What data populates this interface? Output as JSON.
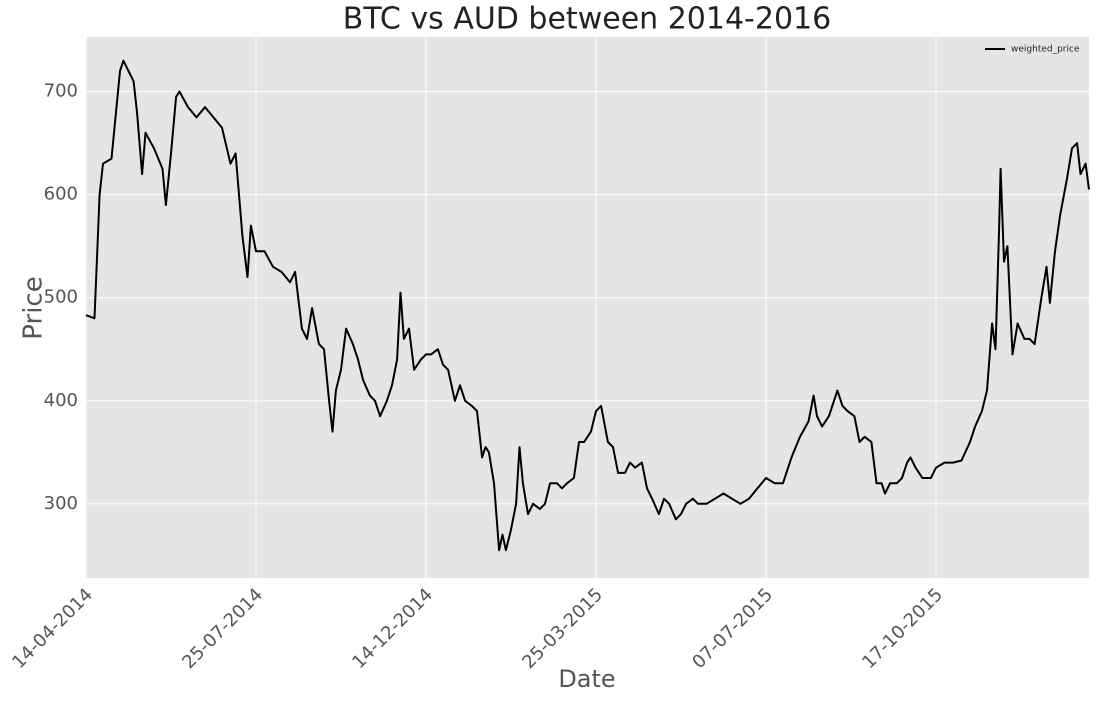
{
  "chart_data": {
    "type": "line",
    "title": "BTC vs AUD between 2014-2016",
    "x_label": "Date",
    "y_label": "Price",
    "grid": true,
    "legend": "upper right",
    "xlim": [
      0,
      590
    ],
    "ylim": [
      228,
      753
    ],
    "xticks": [
      {
        "value": 0,
        "label": "14-04-2014"
      },
      {
        "value": 100,
        "label": "25-07-2014"
      },
      {
        "value": 200,
        "label": "14-12-2014"
      },
      {
        "value": 300,
        "label": "25-03-2015"
      },
      {
        "value": 400,
        "label": "07-07-2015"
      },
      {
        "value": 500,
        "label": "17-10-2015"
      }
    ],
    "yticks": [
      300,
      400,
      500,
      600,
      700
    ],
    "x": [
      0,
      5,
      8,
      10,
      15,
      20,
      22,
      25,
      28,
      30,
      33,
      35,
      40,
      45,
      47,
      50,
      53,
      55,
      60,
      65,
      70,
      75,
      80,
      85,
      88,
      92,
      95,
      97,
      100,
      105,
      110,
      115,
      120,
      123,
      127,
      130,
      133,
      137,
      140,
      143,
      145,
      147,
      150,
      153,
      157,
      160,
      163,
      167,
      170,
      173,
      177,
      180,
      183,
      185,
      187,
      190,
      193,
      197,
      200,
      203,
      207,
      210,
      213,
      217,
      220,
      223,
      227,
      230,
      233,
      235,
      237,
      240,
      243,
      245,
      247,
      250,
      253,
      255,
      257,
      260,
      263,
      267,
      270,
      273,
      277,
      280,
      283,
      287,
      290,
      293,
      297,
      300,
      303,
      307,
      310,
      313,
      317,
      320,
      323,
      327,
      330,
      333,
      337,
      340,
      343,
      347,
      350,
      353,
      357,
      360,
      365,
      370,
      375,
      380,
      385,
      390,
      395,
      400,
      405,
      410,
      415,
      420,
      425,
      428,
      430,
      433,
      437,
      440,
      442,
      445,
      448,
      452,
      455,
      458,
      462,
      465,
      468,
      470,
      473,
      477,
      480,
      483,
      485,
      488,
      492,
      497,
      500,
      505,
      510,
      515,
      520,
      523,
      527,
      530,
      533,
      535,
      537,
      538,
      540,
      542,
      545,
      548,
      552,
      555,
      558,
      562,
      565,
      567,
      570,
      573,
      577,
      580,
      583,
      585,
      588,
      590
    ],
    "series": [
      {
        "name": "weighted_price",
        "color": "#000000",
        "values": [
          483,
          480,
          600,
          630,
          635,
          720,
          730,
          720,
          710,
          680,
          620,
          660,
          645,
          625,
          590,
          640,
          695,
          700,
          685,
          675,
          685,
          675,
          665,
          630,
          640,
          560,
          520,
          570,
          545,
          545,
          530,
          525,
          515,
          525,
          470,
          460,
          490,
          455,
          450,
          400,
          370,
          410,
          430,
          470,
          455,
          440,
          420,
          405,
          400,
          385,
          400,
          415,
          440,
          505,
          460,
          470,
          430,
          440,
          445,
          445,
          450,
          435,
          430,
          400,
          415,
          400,
          395,
          390,
          345,
          355,
          350,
          320,
          255,
          270,
          255,
          275,
          300,
          355,
          320,
          290,
          300,
          295,
          300,
          320,
          320,
          315,
          320,
          325,
          360,
          360,
          370,
          390,
          395,
          360,
          355,
          330,
          330,
          340,
          335,
          340,
          315,
          305,
          290,
          305,
          300,
          285,
          290,
          300,
          305,
          300,
          300,
          305,
          310,
          305,
          300,
          305,
          315,
          325,
          320,
          320,
          345,
          365,
          380,
          405,
          385,
          375,
          385,
          400,
          410,
          395,
          390,
          385,
          360,
          365,
          360,
          320,
          320,
          310,
          320,
          320,
          325,
          340,
          345,
          335,
          325,
          325,
          335,
          340,
          340,
          342,
          360,
          375,
          390,
          410,
          475,
          450,
          560,
          625,
          535,
          550,
          445,
          475,
          460,
          460,
          455,
          500,
          530,
          495,
          545,
          580,
          615,
          645,
          650,
          620,
          630,
          605
        ]
      }
    ]
  }
}
